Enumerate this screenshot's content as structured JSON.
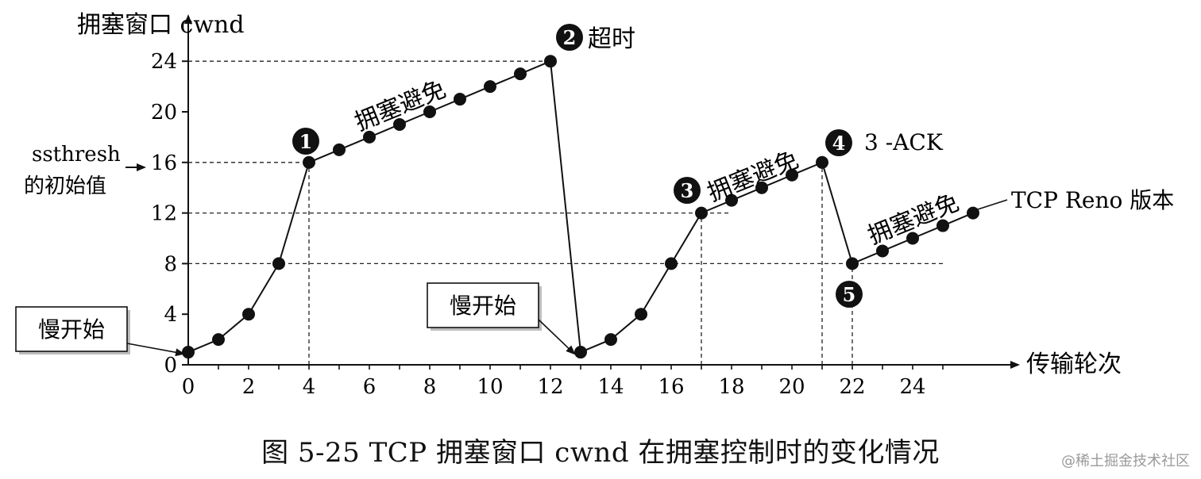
{
  "chart_data": {
    "type": "line",
    "ylabel": "拥塞窗口 cwnd",
    "xlabel": "传输轮次",
    "x_ticks": [
      0,
      2,
      4,
      6,
      8,
      10,
      12,
      14,
      16,
      18,
      20,
      22,
      24
    ],
    "y_ticks": [
      0,
      4,
      8,
      12,
      16,
      20,
      24
    ],
    "xlim": [
      0,
      27
    ],
    "ylim": [
      0,
      25
    ],
    "series": [
      {
        "x": [
          0,
          1,
          2,
          3,
          4,
          5,
          6,
          7,
          8,
          9,
          10,
          11,
          12,
          13,
          14,
          15,
          16,
          17,
          18,
          19,
          20,
          21,
          22,
          23,
          24,
          25,
          26
        ],
        "y": [
          1,
          2,
          4,
          8,
          16,
          17,
          18,
          19,
          20,
          21,
          22,
          23,
          24,
          1,
          2,
          4,
          8,
          12,
          13,
          14,
          15,
          16,
          8,
          9,
          10,
          11,
          12
        ]
      }
    ],
    "dashed_lines": [
      {
        "axis": "y",
        "value": 24,
        "to_x": 12
      },
      {
        "axis": "y",
        "value": 16,
        "to_x": 4
      },
      {
        "axis": "y",
        "value": 12,
        "to_x": 18
      },
      {
        "axis": "y",
        "value": 8,
        "to_x": 25
      },
      {
        "axis": "x",
        "value": 4,
        "to_y": 16
      },
      {
        "axis": "x",
        "value": 17,
        "to_y": 12
      },
      {
        "axis": "x",
        "value": 21,
        "to_y": 16
      },
      {
        "axis": "x",
        "value": 22,
        "to_y": 8
      }
    ],
    "annotations": {
      "ssthresh_line1": "ssthresh",
      "ssthresh_line2": "的初始值",
      "slow_start_1": "慢开始",
      "slow_start_2": "慢开始",
      "ca_1": "拥塞避免",
      "ca_2": "拥塞避免",
      "ca_3": "拥塞避免",
      "marker_1": "1",
      "marker_2": "2",
      "marker_2_text": "超时",
      "marker_3": "3",
      "marker_4": "4",
      "marker_4_text": "3 -ACK",
      "marker_5": "5",
      "reno_label": "TCP Reno 版本"
    }
  },
  "caption": "图 5-25 TCP 拥塞窗口 cwnd 在拥塞控制时的变化情况",
  "watermark": "@稀土掘金技术社区"
}
